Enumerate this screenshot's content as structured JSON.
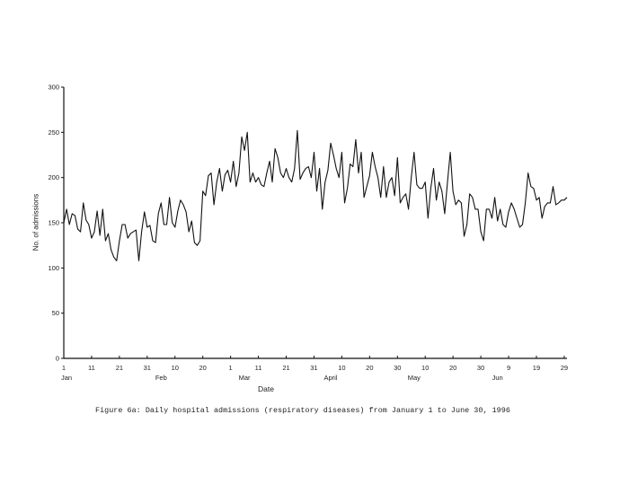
{
  "caption": "Figure 6a: Daily hospital admissions (respiratory diseases) from January 1 to June 30, 1996",
  "chart_data": {
    "type": "line",
    "title": "Figure 6a: Daily hospital admissions (respiratory diseases) from January 1 to June 30, 1996",
    "xlabel": "Date",
    "ylabel": "No. of admissions",
    "ylim": [
      0,
      300
    ],
    "yticks": [
      0,
      50,
      100,
      150,
      200,
      250,
      300
    ],
    "xlim_days": [
      1,
      182
    ],
    "grid": false,
    "legend": null,
    "x_ticks": [
      {
        "day": 1,
        "label": "1"
      },
      {
        "day": 11,
        "label": "11"
      },
      {
        "day": 21,
        "label": "21"
      },
      {
        "day": 31,
        "label": "31"
      },
      {
        "day": 41,
        "label": "10"
      },
      {
        "day": 51,
        "label": "20"
      },
      {
        "day": 61,
        "label": "1"
      },
      {
        "day": 71,
        "label": "11"
      },
      {
        "day": 81,
        "label": "21"
      },
      {
        "day": 91,
        "label": "31"
      },
      {
        "day": 101,
        "label": "10"
      },
      {
        "day": 111,
        "label": "20"
      },
      {
        "day": 121,
        "label": "30"
      },
      {
        "day": 131,
        "label": "10"
      },
      {
        "day": 141,
        "label": "20"
      },
      {
        "day": 151,
        "label": "30"
      },
      {
        "day": 161,
        "label": "9"
      },
      {
        "day": 171,
        "label": "19"
      },
      {
        "day": 181,
        "label": "29"
      }
    ],
    "month_labels": [
      {
        "day": 1,
        "label": "Jan"
      },
      {
        "day": 36,
        "label": "Feb"
      },
      {
        "day": 66,
        "label": "Mar"
      },
      {
        "day": 97,
        "label": "April"
      },
      {
        "day": 127,
        "label": "May"
      },
      {
        "day": 157,
        "label": "Jun"
      }
    ],
    "series": [
      {
        "name": "Daily admissions",
        "start_date": "Jan 1",
        "end_date": "Jun 30",
        "values": [
          150,
          165,
          148,
          160,
          158,
          143,
          140,
          172,
          153,
          148,
          133,
          140,
          163,
          136,
          165,
          130,
          138,
          120,
          112,
          108,
          130,
          148,
          148,
          133,
          138,
          140,
          142,
          108,
          140,
          162,
          145,
          147,
          130,
          128,
          160,
          172,
          148,
          148,
          178,
          150,
          145,
          163,
          175,
          170,
          162,
          140,
          152,
          128,
          125,
          130,
          185,
          180,
          202,
          205,
          170,
          195,
          210,
          185,
          203,
          208,
          195,
          218,
          190,
          205,
          245,
          230,
          250,
          195,
          205,
          195,
          200,
          192,
          190,
          205,
          218,
          195,
          232,
          222,
          205,
          200,
          210,
          200,
          195,
          210,
          252,
          198,
          205,
          210,
          212,
          200,
          228,
          185,
          210,
          165,
          195,
          208,
          238,
          225,
          210,
          200,
          228,
          172,
          188,
          215,
          212,
          242,
          205,
          228,
          178,
          190,
          202,
          228,
          212,
          200,
          178,
          212,
          178,
          195,
          200,
          180,
          222,
          172,
          178,
          182,
          165,
          200,
          228,
          192,
          188,
          188,
          195,
          155,
          188,
          210,
          175,
          195,
          185,
          160,
          195,
          228,
          185,
          170,
          175,
          172,
          135,
          148,
          182,
          178,
          165,
          165,
          140,
          130,
          165,
          165,
          155,
          178,
          152,
          165,
          148,
          145,
          162,
          172,
          165,
          155,
          145,
          148,
          172,
          205,
          190,
          188,
          175,
          178,
          155,
          168,
          172,
          172,
          190,
          170,
          172,
          175,
          175,
          178
        ]
      }
    ]
  }
}
